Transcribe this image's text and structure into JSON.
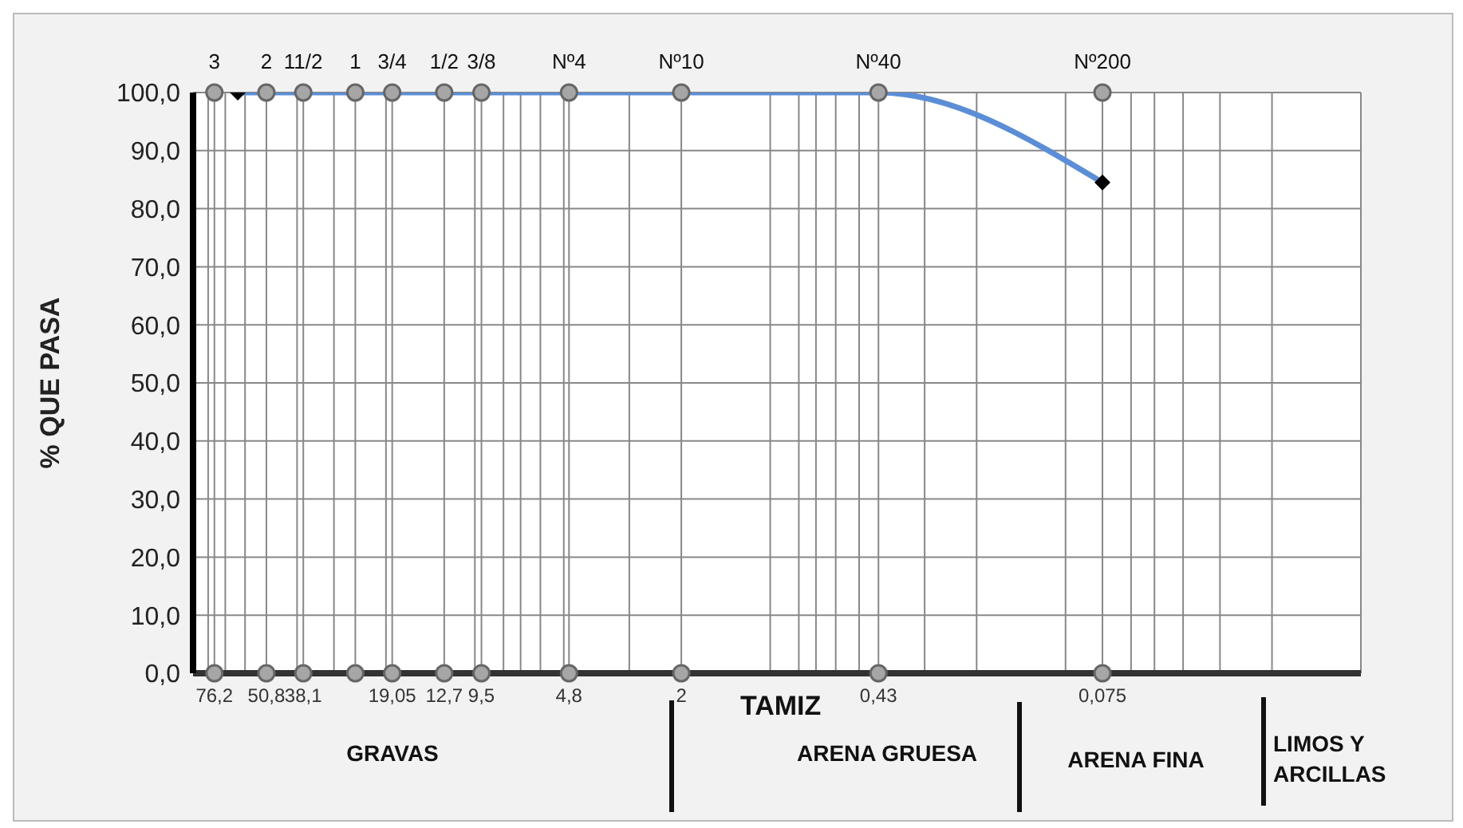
{
  "chart_data": {
    "type": "line",
    "xlabel": "TAMIZ",
    "ylabel": "% QUE PASA",
    "log": "x",
    "grid": true,
    "marker": "diamond",
    "line_style": "solid",
    "xlim": [
      90,
      0.01
    ],
    "ylim": [
      0,
      100
    ],
    "yticks": [
      {
        "value": 0,
        "label": "0,0"
      },
      {
        "value": 10,
        "label": "10,0"
      },
      {
        "value": 20,
        "label": "20,0"
      },
      {
        "value": 30,
        "label": "30,0"
      },
      {
        "value": 40,
        "label": "40,0"
      },
      {
        "value": 50,
        "label": "50,0"
      },
      {
        "value": 60,
        "label": "60,0"
      },
      {
        "value": 70,
        "label": "70,0"
      },
      {
        "value": 80,
        "label": "80,0"
      },
      {
        "value": 90,
        "label": "90,0"
      },
      {
        "value": 100,
        "label": "100,0"
      }
    ],
    "xticks": [
      {
        "value": 76.2,
        "label": "76,2"
      },
      {
        "value": 50.8,
        "label": "50,8"
      },
      {
        "value": 38.1,
        "label": "38,1"
      },
      {
        "value": 25.4,
        "label": null
      },
      {
        "value": 19.05,
        "label": "19,05"
      },
      {
        "value": 12.7,
        "label": "12,7"
      },
      {
        "value": 9.5,
        "label": "9,5"
      },
      {
        "value": 4.8,
        "label": "4,8"
      },
      {
        "value": 2,
        "label": "2"
      },
      {
        "value": 0.43,
        "label": "0,43"
      },
      {
        "value": 0.075,
        "label": "0,075"
      },
      {
        "value": 80,
        "label": null
      },
      {
        "value": 70,
        "label": null
      },
      {
        "value": 60,
        "label": null
      },
      {
        "value": 40,
        "label": null
      },
      {
        "value": 30,
        "label": null
      },
      {
        "value": 20,
        "label": null
      },
      {
        "value": 10,
        "label": null
      },
      {
        "value": 8,
        "label": null
      },
      {
        "value": 7,
        "label": null
      },
      {
        "value": 6,
        "label": null
      },
      {
        "value": 5,
        "label": null
      },
      {
        "value": 3,
        "label": null
      },
      {
        "value": 1,
        "label": null
      },
      {
        "value": 0.8,
        "label": null
      },
      {
        "value": 0.7,
        "label": null
      },
      {
        "value": 0.6,
        "label": null
      },
      {
        "value": 0.5,
        "label": null
      },
      {
        "value": 0.3,
        "label": null
      },
      {
        "value": 0.2,
        "label": null
      },
      {
        "value": 0.1,
        "label": null
      },
      {
        "value": 0.06,
        "label": null
      },
      {
        "value": 0.05,
        "label": null
      },
      {
        "value": 0.04,
        "label": null
      },
      {
        "value": 0.03,
        "label": null
      },
      {
        "value": 0.02,
        "label": null
      }
    ],
    "x": [
      63.5,
      50.8,
      38.1,
      25.4,
      19.05,
      12.7,
      9.5,
      4.8,
      2,
      0.43,
      0.075
    ],
    "series": [
      {
        "color": "#5b8ed6",
        "colors": [
          "#000000",
          "#000000",
          "#000000",
          "#000000",
          "#000000",
          "#000000",
          "#000000",
          "#000000",
          "#000000",
          "#000000",
          "#000000"
        ],
        "values": [
          100,
          100,
          100,
          100,
          100,
          100,
          100,
          100,
          100,
          100,
          84.5
        ]
      }
    ],
    "annotations": [
      {
        "text": "3",
        "x": 76.2,
        "y": 100
      },
      {
        "text": "2",
        "x": 50.8,
        "y": 100
      },
      {
        "text": "11/2",
        "x": 38.1,
        "y": 100
      },
      {
        "text": "1",
        "x": 25.4,
        "y": 100
      },
      {
        "text": "3/4",
        "x": 19.05,
        "y": 100
      },
      {
        "text": "1/2",
        "x": 12.7,
        "y": 100
      },
      {
        "text": "3/8",
        "x": 9.5,
        "y": 100
      },
      {
        "text": "Nº4",
        "x": 4.8,
        "y": 100
      },
      {
        "text": "Nº10",
        "x": 2,
        "y": 100
      },
      {
        "text": "Nº40",
        "x": 0.43,
        "y": 100
      },
      {
        "text": "Nº200",
        "x": 0.075,
        "y": 100
      },
      "GRAVAS",
      "ARENA GRUESA",
      "ARENA FINA",
      "LIMOS Y ARCILLAS"
    ]
  }
}
